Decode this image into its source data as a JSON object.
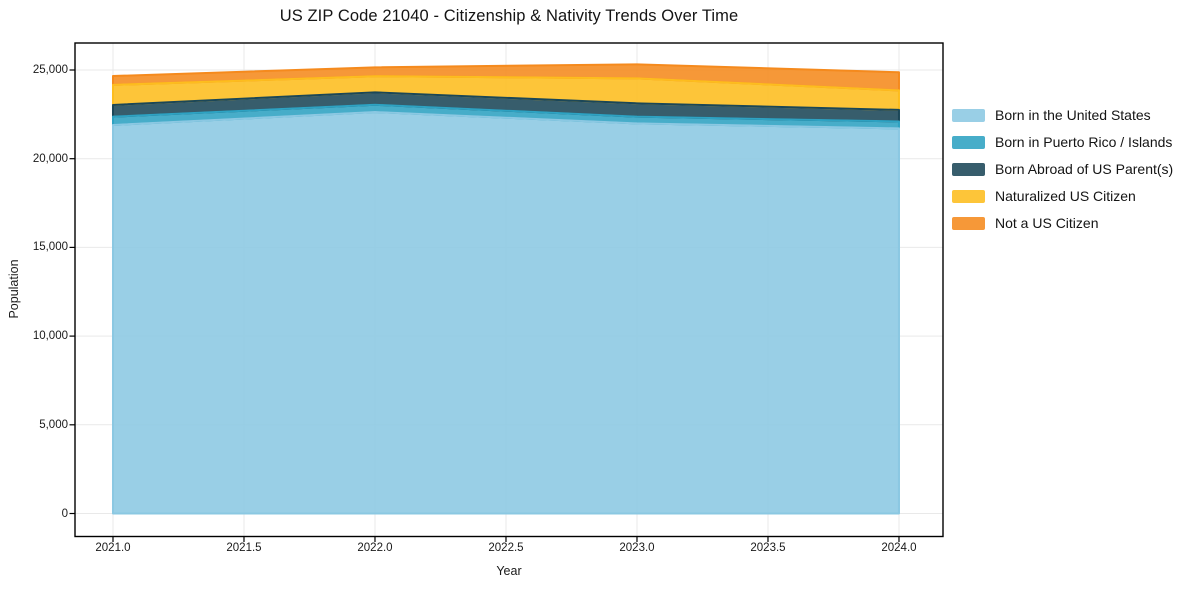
{
  "title": "US ZIP Code 21040 - Citizenship & Nativity Trends Over Time",
  "chart_data": {
    "type": "area",
    "stacked": true,
    "title": "US ZIP Code 21040 - Citizenship & Nativity Trends Over Time",
    "xlabel": "Year",
    "ylabel": "Population",
    "x": [
      2021,
      2022,
      2023,
      2024
    ],
    "series": [
      {
        "name": "Born in the United States",
        "color": "#8bc8e2",
        "values": [
          21900,
          22630,
          21990,
          21710
        ]
      },
      {
        "name": "Born in Puerto Rico / Islands",
        "color": "#2ea2c2",
        "values": [
          470,
          410,
          380,
          390
        ]
      },
      {
        "name": "Born Abroad of US Parent(s)",
        "color": "#1b4758",
        "values": [
          660,
          700,
          750,
          650
        ]
      },
      {
        "name": "Naturalized US Citizen",
        "color": "#fdbd1e",
        "values": [
          1130,
          910,
          1410,
          1100
        ]
      },
      {
        "name": "Not a US Citizen",
        "color": "#f58a1d",
        "values": [
          500,
          500,
          790,
          1020
        ]
      }
    ],
    "stack_totals": [
      24660,
      25150,
      25320,
      24870
    ],
    "xticks": {
      "values": [
        2021,
        2021.5,
        2022,
        2022.5,
        2023,
        2023.5,
        2024
      ],
      "labels": [
        "2021.0",
        "2021.5",
        "2022.0",
        "2022.5",
        "2023.0",
        "2023.5",
        "2024.0"
      ]
    },
    "yticks": {
      "values": [
        0,
        5000,
        10000,
        15000,
        20000,
        25000
      ],
      "labels": [
        "0",
        "5,000",
        "10,000",
        "15,000",
        "20,000",
        "25,000"
      ]
    },
    "xlim": [
      2020.855,
      2024.168
    ],
    "ylim": [
      -1296,
      26522
    ],
    "grid": true,
    "grid_color": "#e9e9e9",
    "spine_color": "#000000",
    "fill_opacity": 0.88,
    "legend_position": "outside-right-top"
  }
}
